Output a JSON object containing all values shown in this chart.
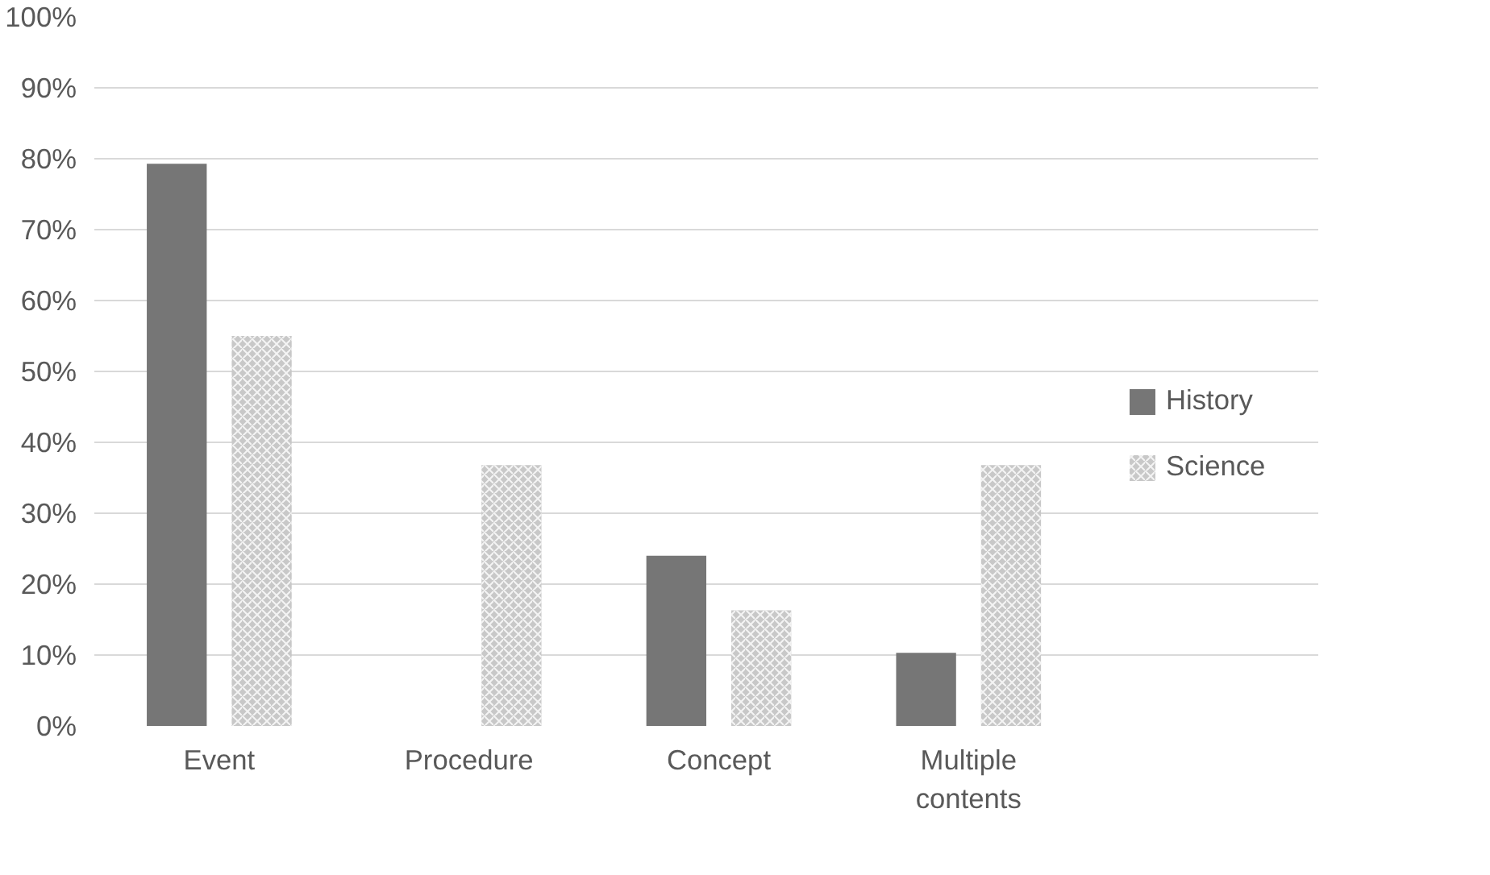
{
  "chart_data": {
    "type": "bar",
    "categories": [
      "Event",
      "Procedure",
      "Concept",
      "Multiple contents"
    ],
    "series": [
      {
        "name": "History",
        "color": "#767676",
        "values": [
          79.3,
          0,
          24,
          10.3
        ]
      },
      {
        "name": "Science",
        "color": "#c8c8c8",
        "values": [
          55,
          36.8,
          16.3,
          36.8
        ]
      }
    ],
    "ylim": [
      0,
      100
    ],
    "yticks": [
      {
        "value": 0,
        "label": "0%"
      },
      {
        "value": 10,
        "label": "10%"
      },
      {
        "value": 20,
        "label": "20%"
      },
      {
        "value": 30,
        "label": "30%"
      },
      {
        "value": 40,
        "label": "40%"
      },
      {
        "value": 50,
        "label": "50%"
      },
      {
        "value": 60,
        "label": "60%"
      },
      {
        "value": 70,
        "label": "70%"
      },
      {
        "value": 80,
        "label": "80%"
      },
      {
        "value": 90,
        "label": "90%"
      },
      {
        "value": 100,
        "label": "100%"
      }
    ],
    "grid": "y",
    "legend": "right"
  }
}
